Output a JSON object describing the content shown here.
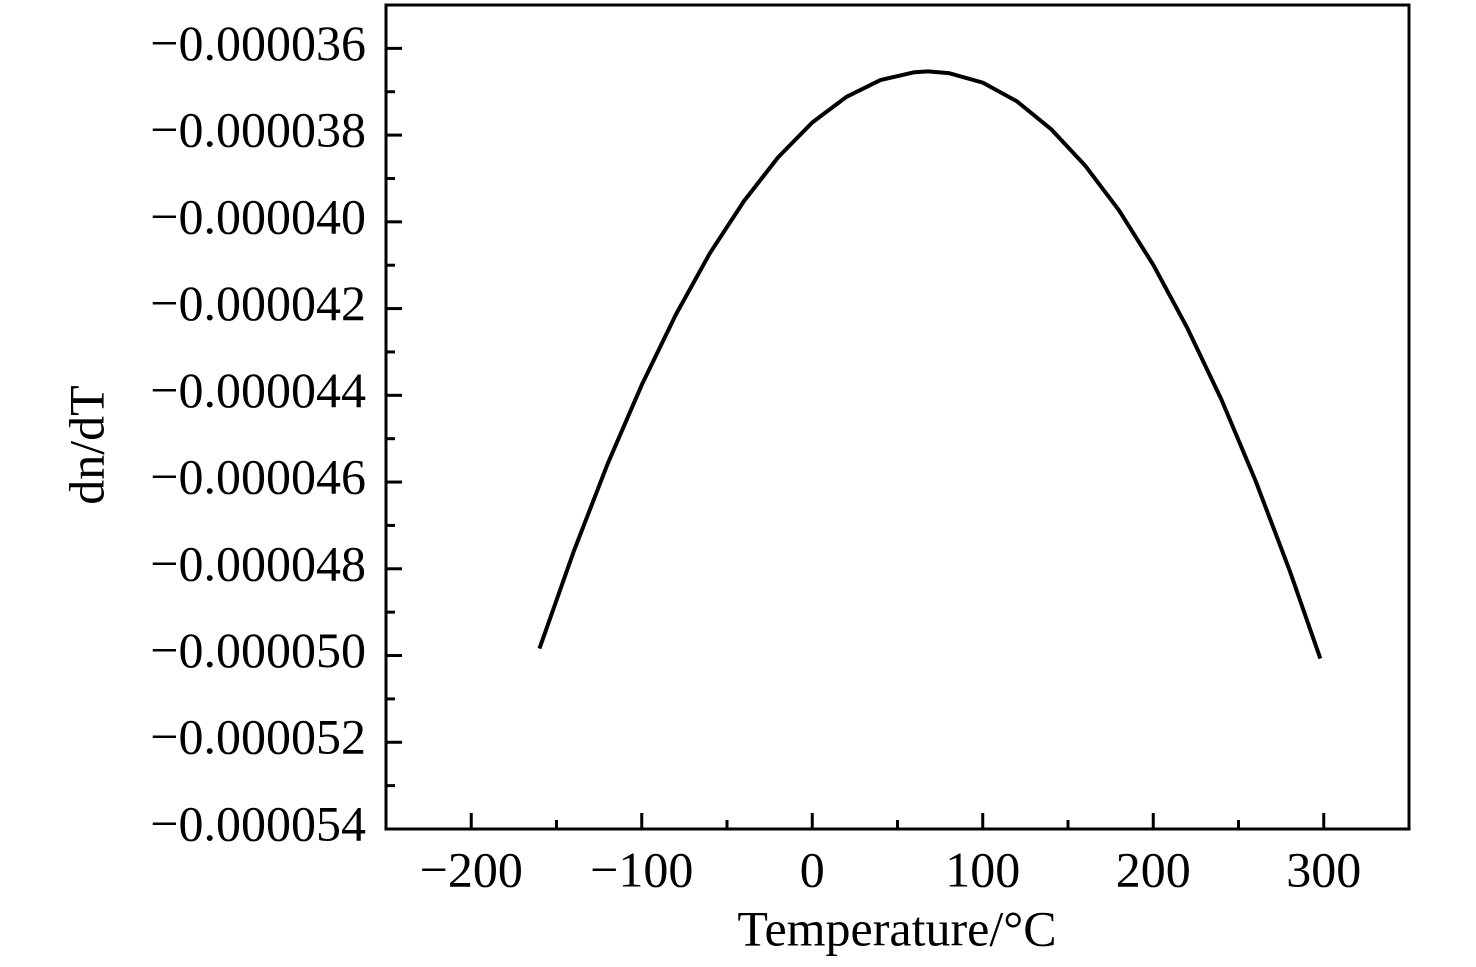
{
  "chart_data": {
    "type": "line",
    "xlabel": "Temperature/°C",
    "ylabel": "dn/dT",
    "x": [
      -160,
      -140,
      -120,
      -100,
      -80,
      -60,
      -40,
      -20,
      0,
      20,
      40,
      60,
      68,
      80,
      100,
      120,
      140,
      160,
      180,
      200,
      220,
      240,
      260,
      280,
      298
    ],
    "values": [
      -4.984e-05,
      -4.761e-05,
      -4.558e-05,
      -4.376e-05,
      -4.214e-05,
      -4.072e-05,
      -3.952e-05,
      -3.851e-05,
      -3.771e-05,
      -3.712e-05,
      -3.673e-05,
      -3.655e-05,
      -3.653e-05,
      -3.657e-05,
      -3.679e-05,
      -3.722e-05,
      -3.786e-05,
      -3.87e-05,
      -3.974e-05,
      -4.099e-05,
      -4.245e-05,
      -4.41e-05,
      -4.597e-05,
      -4.804e-05,
      -5.007e-05
    ],
    "color": "#000000",
    "xlim": [
      -250,
      350
    ],
    "xticks": [
      {
        "value": -200,
        "label": "−200"
      },
      {
        "value": -100,
        "label": "−100"
      },
      0,
      100,
      200,
      300
    ],
    "xminorticks": [
      -150,
      -50,
      50,
      150,
      250
    ],
    "ylim": [
      -5.4e-05,
      -3.5e-05
    ],
    "yticks": [
      {
        "value": -5.4e-05,
        "label": "−0.000054"
      },
      {
        "value": -5.2e-05,
        "label": "−0.000052"
      },
      {
        "value": -5e-05,
        "label": "−0.000050"
      },
      {
        "value": -4.8e-05,
        "label": "−0.000048"
      },
      {
        "value": -4.6e-05,
        "label": "−0.000046"
      },
      {
        "value": -4.4e-05,
        "label": "−0.000044"
      },
      {
        "value": -4.2e-05,
        "label": "−0.000042"
      },
      {
        "value": -4e-05,
        "label": "−0.000040"
      },
      {
        "value": -3.8e-05,
        "label": "−0.000038"
      },
      {
        "value": -3.6e-05,
        "label": "−0.000036"
      }
    ],
    "yminorticks": [
      -5.3e-05,
      -5.1e-05,
      -4.9e-05,
      -4.7e-05,
      -4.5e-05,
      -4.3e-05,
      -4.1e-05,
      -3.9e-05,
      -3.7e-05,
      -3.5e-05
    ],
    "grid": false
  }
}
